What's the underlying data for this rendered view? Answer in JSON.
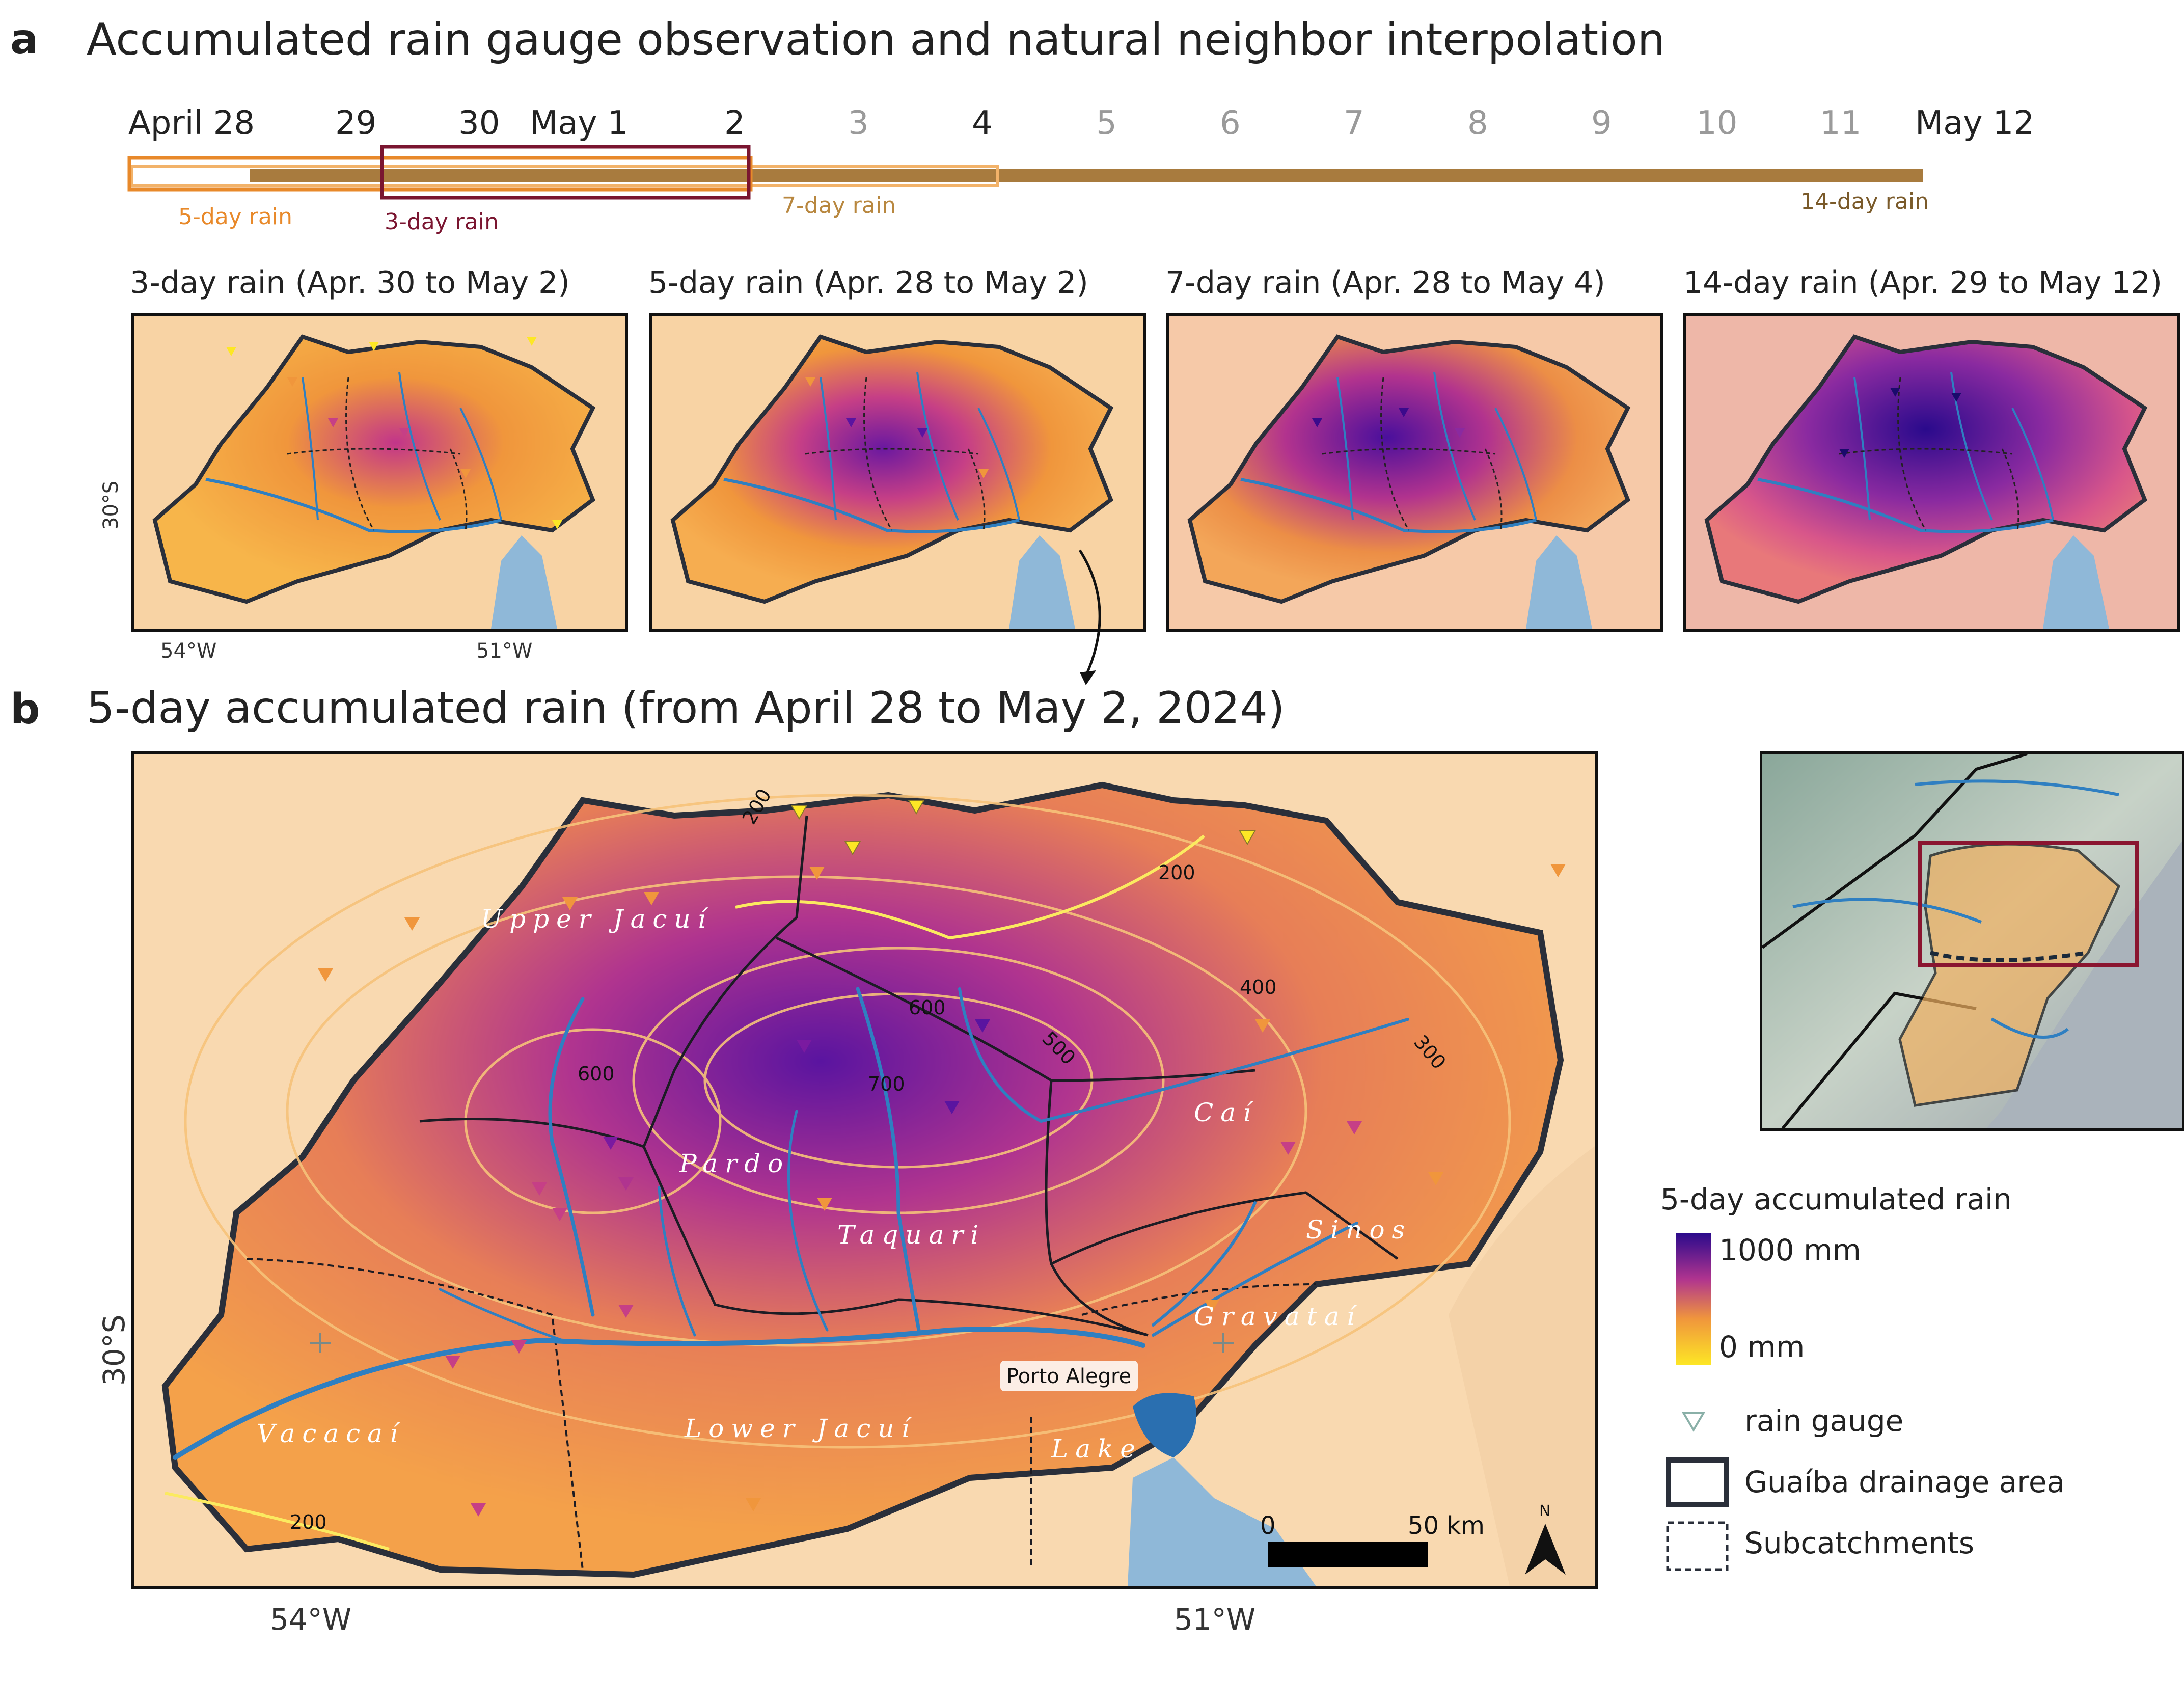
{
  "panel_a": {
    "letter": "a",
    "title": "Accumulated rain gauge observation and natural neighbor interpolation",
    "timeline": {
      "dates": [
        {
          "label": "April 28",
          "emphasis": "dark"
        },
        {
          "label": "29",
          "emphasis": "dark"
        },
        {
          "label": "30",
          "emphasis": "dark"
        },
        {
          "label": "May 1",
          "emphasis": "dark"
        },
        {
          "label": "2",
          "emphasis": "dark"
        },
        {
          "label": "3",
          "emphasis": "grey"
        },
        {
          "label": "4",
          "emphasis": "dark"
        },
        {
          "label": "5",
          "emphasis": "grey"
        },
        {
          "label": "6",
          "emphasis": "grey"
        },
        {
          "label": "7",
          "emphasis": "grey"
        },
        {
          "label": "8",
          "emphasis": "grey"
        },
        {
          "label": "9",
          "emphasis": "grey"
        },
        {
          "label": "10",
          "emphasis": "grey"
        },
        {
          "label": "11",
          "emphasis": "grey"
        },
        {
          "label": "May 12",
          "emphasis": "dark"
        }
      ],
      "windows": [
        {
          "label": "5-day rain",
          "color": "#e8892a"
        },
        {
          "label": "3-day rain",
          "color": "#7a1530"
        },
        {
          "label": "7-day rain",
          "color": "#b8873f"
        },
        {
          "label": "14-day rain",
          "color": "#7a5a2a"
        }
      ]
    },
    "maps": [
      {
        "title": "3-day rain (Apr. 30 to May 2)"
      },
      {
        "title": "5-day rain (Apr. 28 to May 2)"
      },
      {
        "title": "7-day rain (Apr. 28 to May 4)"
      },
      {
        "title": "14-day rain (Apr. 29 to May 12)"
      }
    ],
    "axis": {
      "lat": "30°S",
      "lon_left": "54°W",
      "lon_right": "51°W"
    }
  },
  "panel_b": {
    "letter": "b",
    "title": "5-day accumulated rain (from April 28 to May 2, 2024)",
    "subcatchments": [
      "Upper Jacuí",
      "Pardo",
      "Taquari",
      "Caí",
      "Sinos",
      "Gravataí",
      "Vacacaí",
      "Lower Jacuí",
      "Lake"
    ],
    "city": "Porto Alegre",
    "contours": [
      "200",
      "200",
      "200",
      "300",
      "400",
      "500",
      "600",
      "600",
      "700"
    ],
    "scale_bar": {
      "start": "0",
      "end": "50 km"
    },
    "north": "N",
    "axis": {
      "lat": "30°S",
      "lon_left": "54°W",
      "lon_right": "51°W"
    },
    "legend": {
      "title": "5-day accumulated rain",
      "max": "1000 mm",
      "min": "0 mm",
      "gauge": "rain gauge",
      "drainage": "Guaíba drainage area",
      "subcatchments": "Subcatchments"
    }
  },
  "colors": {
    "low": "#fde725",
    "mid": "#f0963c",
    "high": "#d8447a",
    "max": "#3b0a8c",
    "river": "#2f7fc1",
    "lake": "#8fb8d8",
    "background": "#f9d9b0"
  }
}
